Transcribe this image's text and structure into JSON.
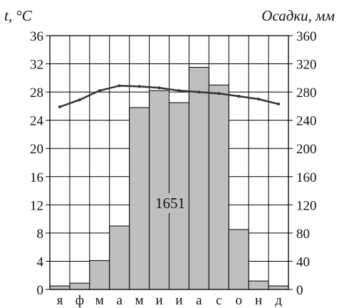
{
  "chart_data": {
    "type": "bar",
    "categories": [
      "я",
      "ф",
      "м",
      "а",
      "м",
      "и",
      "и",
      "а",
      "с",
      "о",
      "н",
      "д"
    ],
    "series": [
      {
        "kind": "bar",
        "axis": "right",
        "color": "#bfbfbf",
        "values": [
          5,
          9,
          41,
          90,
          258,
          282,
          265,
          315,
          290,
          85,
          12,
          5
        ]
      },
      {
        "kind": "line",
        "axis": "left",
        "color": "#333333",
        "values": [
          25.9,
          26.9,
          28.2,
          28.9,
          28.8,
          28.6,
          28.2,
          28.0,
          27.8,
          27.4,
          27.0,
          26.3
        ]
      }
    ],
    "ylabel_left": "t, °C",
    "ylabel_right": "Осадки, мм",
    "ylim_left": [
      0,
      36
    ],
    "ylim_right": [
      0,
      360
    ],
    "yticks_left": [
      "0",
      "4",
      "8",
      "12",
      "16",
      "20",
      "24",
      "28",
      "32",
      "36"
    ],
    "yticks_right": [
      "0",
      "40",
      "80",
      "120",
      "160",
      "200",
      "240",
      "280",
      "320",
      "360"
    ],
    "grid": true,
    "annotation": "1651"
  }
}
